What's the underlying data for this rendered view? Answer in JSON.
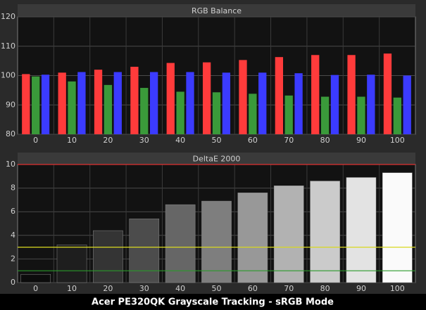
{
  "chart_data": [
    {
      "type": "grouped-bar",
      "title": "RGB Balance",
      "categories": [
        "0",
        "10",
        "20",
        "30",
        "40",
        "50",
        "60",
        "70",
        "80",
        "90",
        "100"
      ],
      "series": [
        {
          "name": "Red",
          "color": "#ff3b3b",
          "values": [
            100.5,
            101,
            102,
            103,
            104.3,
            104.5,
            105.3,
            106.3,
            107,
            107,
            107.5
          ]
        },
        {
          "name": "Green",
          "color": "#3a9a3a",
          "values": [
            99.7,
            98,
            96.8,
            95.8,
            94.5,
            94.3,
            93.8,
            93.2,
            92.8,
            92.8,
            92.5
          ]
        },
        {
          "name": "Blue",
          "color": "#3b3bff",
          "values": [
            100.3,
            101.2,
            101.2,
            101.2,
            101.2,
            101,
            101,
            100.8,
            100.2,
            100.3,
            100
          ]
        }
      ],
      "ylim": [
        80,
        120
      ],
      "yticks": [
        80,
        90,
        100,
        110,
        120
      ],
      "grid": true
    },
    {
      "type": "bar",
      "title": "DeltaE 2000",
      "categories": [
        "0",
        "10",
        "20",
        "30",
        "40",
        "50",
        "60",
        "70",
        "80",
        "90",
        "100"
      ],
      "values": [
        0.7,
        3.2,
        4.4,
        5.4,
        6.6,
        6.9,
        7.6,
        8.2,
        8.6,
        8.9,
        9.3
      ],
      "colors": [
        "#0c0c0c",
        "#1e1e1e",
        "#343434",
        "#4c4c4c",
        "#666666",
        "#7e7e7e",
        "#989898",
        "#b2b2b2",
        "#cbcbcb",
        "#e3e3e3",
        "#fafafa"
      ],
      "ylim": [
        0,
        10
      ],
      "yticks": [
        0,
        2,
        4,
        6,
        8,
        10
      ],
      "grid": true,
      "reference_lines": [
        {
          "value": 10,
          "color": "#e03030"
        },
        {
          "value": 3,
          "color": "#d8d820"
        },
        {
          "value": 1,
          "color": "#2a9a2a"
        }
      ]
    }
  ],
  "caption": "Acer PE320QK Grayscale Tracking - sRGB Mode"
}
